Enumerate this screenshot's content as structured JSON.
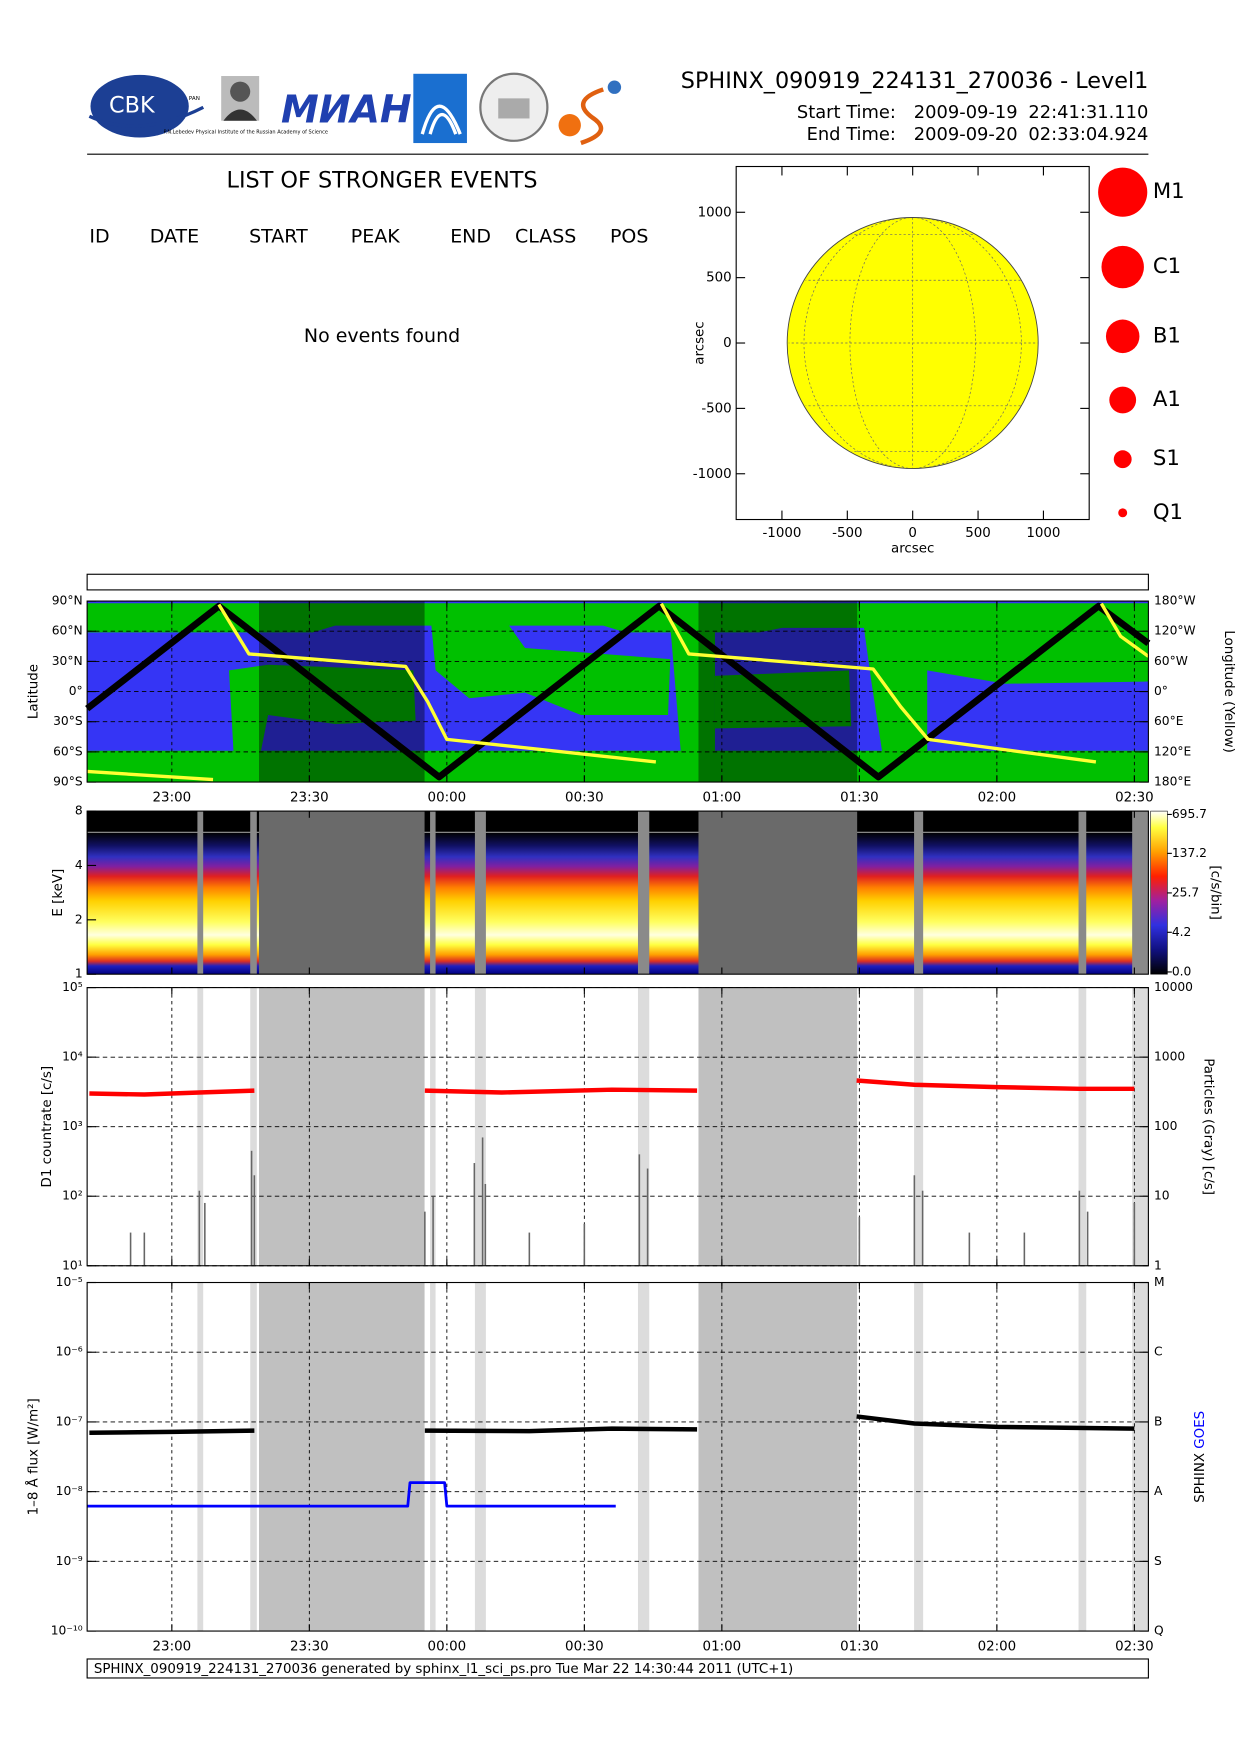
{
  "header": {
    "title": "SPHINX_090919_224131_270036 - Level1",
    "start_label": "Start Time:",
    "start_date": "2009-09-19",
    "start_time": "22:41:31.110",
    "end_label": "End Time:",
    "end_date": "2009-09-20",
    "end_time": "02:33:04.924"
  },
  "logos": {
    "cbk": "CBK",
    "pan": "PAN",
    "lebedev": "P.N.Lebedev Physical Institute of the Russian Academy of Science",
    "miah": "МИАН"
  },
  "events": {
    "title": "LIST OF STRONGER EVENTS",
    "columns": [
      "ID",
      "DATE",
      "START",
      "PEAK",
      "END",
      "CLASS",
      "POS"
    ],
    "message": "No events found"
  },
  "footer": "SPHINX_090919_224131_270036 generated by sphinx_l1_sci_ps.pro Tue Mar 22 14:30:44 2011 (UTC+1)",
  "time_axis": {
    "xlim": [
      22.692,
      26.551
    ],
    "xticks": [
      {
        "value": 23,
        "label": "23:00"
      },
      {
        "value": 23.5,
        "label": "23:30"
      },
      {
        "value": 24,
        "label": "00:00"
      },
      {
        "value": 24.5,
        "label": "00:30"
      },
      {
        "value": 25,
        "label": "01:00"
      },
      {
        "value": 25.5,
        "label": "01:30"
      },
      {
        "value": 26,
        "label": "02:00"
      },
      {
        "value": 26.5,
        "label": "02:30"
      }
    ]
  },
  "data_gaps": [
    [
      23.093,
      23.114
    ],
    [
      23.285,
      23.309
    ],
    [
      23.317,
      23.919
    ],
    [
      23.939,
      23.959
    ],
    [
      24.102,
      24.142
    ],
    [
      24.695,
      24.736
    ],
    [
      24.915,
      25.492
    ],
    [
      25.699,
      25.732
    ],
    [
      26.297,
      26.325
    ],
    [
      26.492,
      26.551
    ]
  ],
  "chart_data": [
    {
      "type": "disk",
      "xlabel": "arcsec",
      "ylabel": "arcsec",
      "xlim": [
        -1350,
        1350
      ],
      "ylim": [
        -1350,
        1350
      ],
      "xticks": [
        -1000,
        -500,
        0,
        500,
        1000
      ],
      "yticks": [
        -1000,
        -500,
        0,
        500,
        1000
      ],
      "disk_radius": 960,
      "color": "#ffff00",
      "classes": [
        "M1",
        "C1",
        "B1",
        "A1",
        "S1",
        "Q1"
      ],
      "marker_color": "#ff0000"
    },
    {
      "type": "track",
      "ylabel": "Latitude",
      "y2label": "Longitude (Yellow)",
      "ylim": [
        -90,
        90
      ],
      "yticks": [
        {
          "value": 90,
          "label": "90°N"
        },
        {
          "value": 60,
          "label": "60°N"
        },
        {
          "value": 30,
          "label": "30°N"
        },
        {
          "value": 0,
          "label": "0°"
        },
        {
          "value": -30,
          "label": "30°S"
        },
        {
          "value": -60,
          "label": "60°S"
        },
        {
          "value": -90,
          "label": "90°S"
        }
      ],
      "y2lim": [
        -180,
        180
      ],
      "y2ticks": [
        {
          "value": 180,
          "label": "180°W"
        },
        {
          "value": 120,
          "label": "120°W"
        },
        {
          "value": 60,
          "label": "60°W"
        },
        {
          "value": 0,
          "label": "0°"
        },
        {
          "value": -60,
          "label": "60°E"
        },
        {
          "value": -120,
          "label": "120°E"
        },
        {
          "value": -180,
          "label": "180°E"
        }
      ],
      "series": [
        {
          "color": "#000000",
          "x": [
            22.692,
            23.171,
            23.972,
            24.772,
            25.569,
            26.37,
            26.551
          ],
          "values": [
            -17,
            85,
            -85,
            85,
            -85,
            85,
            48
          ]
        },
        {
          "color": "#ffff33",
          "axis": "y2",
          "x": [
            22.692,
            23.15,
            23.16,
            23.171,
            23.28,
            23.85,
            23.93,
            24.0,
            24.76,
            24.77,
            24.78,
            24.88,
            25.55,
            25.65,
            25.75,
            26.36,
            26.37,
            26.38,
            26.45,
            26.551
          ],
          "values": [
            -159,
            -175,
            null,
            173,
            75,
            50,
            -20,
            -95,
            -140,
            null,
            175,
            75,
            45,
            -30,
            -95,
            -140,
            null,
            175,
            110,
            70
          ]
        }
      ]
    },
    {
      "type": "spectrogram",
      "ylabel": "E [keV]",
      "ylog": true,
      "ylim": [
        1,
        8
      ],
      "yticks": [
        1,
        2,
        4,
        8
      ],
      "colorbar": {
        "label": "[c/s/bin]",
        "zlim": [
          0,
          695.7
        ],
        "ticks": [
          695.7,
          137.2,
          25.7,
          4.2,
          {
            "value": 0,
            "label": "0.0"
          }
        ]
      }
    },
    {
      "type": "line",
      "ylabel": "D1 countrate [c/s]",
      "y2label": "Particles (Gray) [c/s]",
      "ylog": true,
      "ylim": [
        10,
        100000
      ],
      "yticks": [
        {
          "value": 10,
          "label": "10¹"
        },
        {
          "value": 100,
          "label": "10²"
        },
        {
          "value": 1000,
          "label": "10³"
        },
        {
          "value": 10000,
          "label": "10⁴"
        },
        {
          "value": 100000,
          "label": "10⁵"
        }
      ],
      "y2lim": [
        1,
        10000
      ],
      "y2ticks": [
        1,
        10,
        100,
        1000,
        10000
      ],
      "grid": true,
      "series": [
        {
          "color": "#ff0000",
          "x": [
            22.7,
            22.9,
            23.1,
            23.3,
            23.6,
            23.92,
            24.2,
            24.6,
            24.91,
            25.2,
            25.49,
            25.7,
            26.0,
            26.3,
            26.5
          ],
          "values": [
            3000,
            2900,
            3100,
            3300,
            null,
            3300,
            3100,
            3400,
            3300,
            null,
            4600,
            4000,
            3700,
            3500,
            3500
          ]
        },
        {
          "color": "#666666",
          "axis": "y2",
          "kind": "bar",
          "x": [
            22.85,
            22.9,
            23.1,
            23.12,
            23.29,
            23.3,
            23.92,
            23.95,
            24.1,
            24.13,
            24.14,
            24.3,
            24.5,
            24.7,
            24.73,
            25.5,
            25.7,
            25.73,
            25.9,
            26.1,
            26.3,
            26.33,
            26.5
          ],
          "values": [
            3,
            3,
            12,
            8,
            45,
            20,
            6,
            10,
            30,
            70,
            15,
            3,
            4,
            40,
            25,
            5,
            20,
            12,
            3,
            3,
            12,
            6,
            8
          ]
        }
      ]
    },
    {
      "type": "line",
      "ylabel": "1–8 Å flux [W/m²]",
      "ylog": true,
      "ylim": [
        1e-10,
        1e-05
      ],
      "yticks": [
        {
          "value": 1e-10,
          "label": "10⁻¹⁰"
        },
        {
          "value": 1e-09,
          "label": "10⁻⁹"
        },
        {
          "value": 1e-08,
          "label": "10⁻⁸"
        },
        {
          "value": 1e-07,
          "label": "10⁻⁷"
        },
        {
          "value": 1e-06,
          "label": "10⁻⁶"
        },
        {
          "value": 1e-05,
          "label": "10⁻⁵"
        }
      ],
      "y2lim": [
        1e-10,
        1e-05
      ],
      "y2ticks": [
        {
          "value": 1e-10,
          "label": "Q"
        },
        {
          "value": 1e-09,
          "label": "S"
        },
        {
          "value": 1e-08,
          "label": "A"
        },
        {
          "value": 1e-07,
          "label": "B"
        },
        {
          "value": 1e-06,
          "label": "C"
        },
        {
          "value": 1e-05,
          "label": "M"
        }
      ],
      "grid": true,
      "legend": "right",
      "series": [
        {
          "name": "SPHINX",
          "color": "#000000",
          "x": [
            22.7,
            23.0,
            23.3,
            23.6,
            23.92,
            24.3,
            24.6,
            24.91,
            25.2,
            25.49,
            25.7,
            26.0,
            26.5
          ],
          "values": [
            7e-08,
            7.2e-08,
            7.5e-08,
            null,
            7.5e-08,
            7.4e-08,
            8e-08,
            7.8e-08,
            null,
            1.2e-07,
            9.5e-08,
            8.5e-08,
            8e-08
          ]
        },
        {
          "name": "GOES",
          "color": "#0000ff",
          "x": [
            22.692,
            23.858,
            23.866,
            23.992,
            24.0,
            24.614
          ],
          "values": [
            6.2e-09,
            6.2e-09,
            1.35e-08,
            1.35e-08,
            6.2e-09,
            6.2e-09
          ]
        }
      ]
    }
  ]
}
